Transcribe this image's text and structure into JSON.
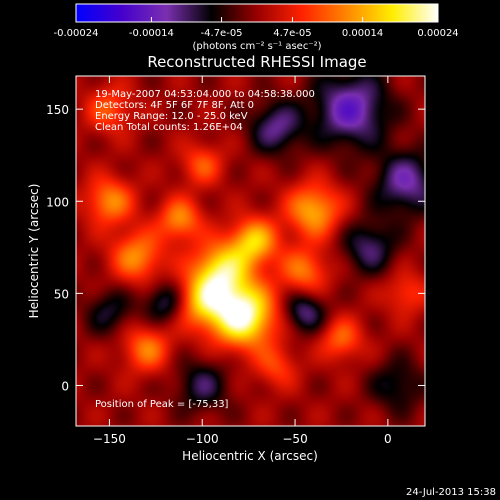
{
  "chart_data": {
    "type": "heatmap",
    "title": "Reconstructed RHESSI Image",
    "xlabel": "Heliocentric X (arcsec)",
    "ylabel": "Heliocentric Y (arcsec)",
    "xlim": [
      -168,
      20
    ],
    "ylim": [
      -22,
      168
    ],
    "xticks": [
      -150,
      -100,
      -50,
      0
    ],
    "yticks": [
      0,
      50,
      100,
      150
    ],
    "colorbar": {
      "min": -0.00024,
      "max": 0.00024,
      "ticks": [
        -0.00024,
        -0.00014,
        -4.7e-05,
        4.7e-05,
        0.00014,
        0.00024
      ],
      "tick_labels": [
        "-0.00024",
        "-0.00014",
        "-4.7e-05",
        "4.7e-05",
        "0.00014",
        "0.00024"
      ],
      "unit_label": "(photons cm⁻² s⁻¹ asec⁻²)"
    },
    "colormap": [
      "#0000ff",
      "#4400cc",
      "#7a2fb0",
      "#000000",
      "#990000",
      "#ff2200",
      "#ff8800",
      "#ffee00",
      "#ffffff"
    ],
    "annotations": {
      "time_range": "19-May-2007 04:53:04.000 to 04:58:38.000",
      "detectors": "Detectors: 4F 5F 6F 7F 8F, Att 0",
      "energy_range": "Energy Range: 12.0 - 25.0 keV",
      "clean_counts": "Clean    Total counts: 1.26E+04",
      "peak": "Position of Peak = [-75,33]"
    },
    "peak_position": [
      -75,
      33
    ],
    "sources": [
      {
        "x": -78,
        "y": 38,
        "amp": 1.0,
        "sigma": 12
      },
      {
        "x": -90,
        "y": 62,
        "amp": 0.75,
        "sigma": 11
      },
      {
        "x": -72,
        "y": 78,
        "amp": 0.65,
        "sigma": 9
      },
      {
        "x": -100,
        "y": 45,
        "amp": 0.55,
        "sigma": 10
      },
      {
        "x": -112,
        "y": 90,
        "amp": 0.5,
        "sigma": 8
      },
      {
        "x": -40,
        "y": 95,
        "amp": 0.6,
        "sigma": 10
      },
      {
        "x": -45,
        "y": 62,
        "amp": 0.45,
        "sigma": 9
      },
      {
        "x": -135,
        "y": 70,
        "amp": 0.5,
        "sigma": 10
      },
      {
        "x": -150,
        "y": 100,
        "amp": 0.5,
        "sigma": 9
      },
      {
        "x": -130,
        "y": 20,
        "amp": 0.45,
        "sigma": 9
      },
      {
        "x": -25,
        "y": 25,
        "amp": 0.4,
        "sigma": 8
      },
      {
        "x": -100,
        "y": 120,
        "amp": 0.35,
        "sigma": 8
      },
      {
        "x": -60,
        "y": 10,
        "amp": 0.3,
        "sigma": 8
      },
      {
        "x": 10,
        "y": 50,
        "amp": 0.3,
        "sigma": 8
      },
      {
        "x": -150,
        "y": 150,
        "amp": 0.35,
        "sigma": 9
      },
      {
        "x": -20,
        "y": 150,
        "amp": -0.6,
        "sigma": 14
      },
      {
        "x": 10,
        "y": 110,
        "amp": -0.5,
        "sigma": 12
      },
      {
        "x": -60,
        "y": 140,
        "amp": -0.45,
        "sigma": 10
      },
      {
        "x": -45,
        "y": 40,
        "amp": -0.45,
        "sigma": 8
      },
      {
        "x": -120,
        "y": 45,
        "amp": -0.4,
        "sigma": 8
      },
      {
        "x": -10,
        "y": 75,
        "amp": -0.4,
        "sigma": 10
      },
      {
        "x": -100,
        "y": 0,
        "amp": -0.35,
        "sigma": 10
      },
      {
        "x": -150,
        "y": 40,
        "amp": -0.3,
        "sigma": 9
      },
      {
        "x": 5,
        "y": 0,
        "amp": -0.3,
        "sigma": 10
      }
    ]
  },
  "footer": {
    "timestamp": "24-Jul-2013 15:38"
  }
}
